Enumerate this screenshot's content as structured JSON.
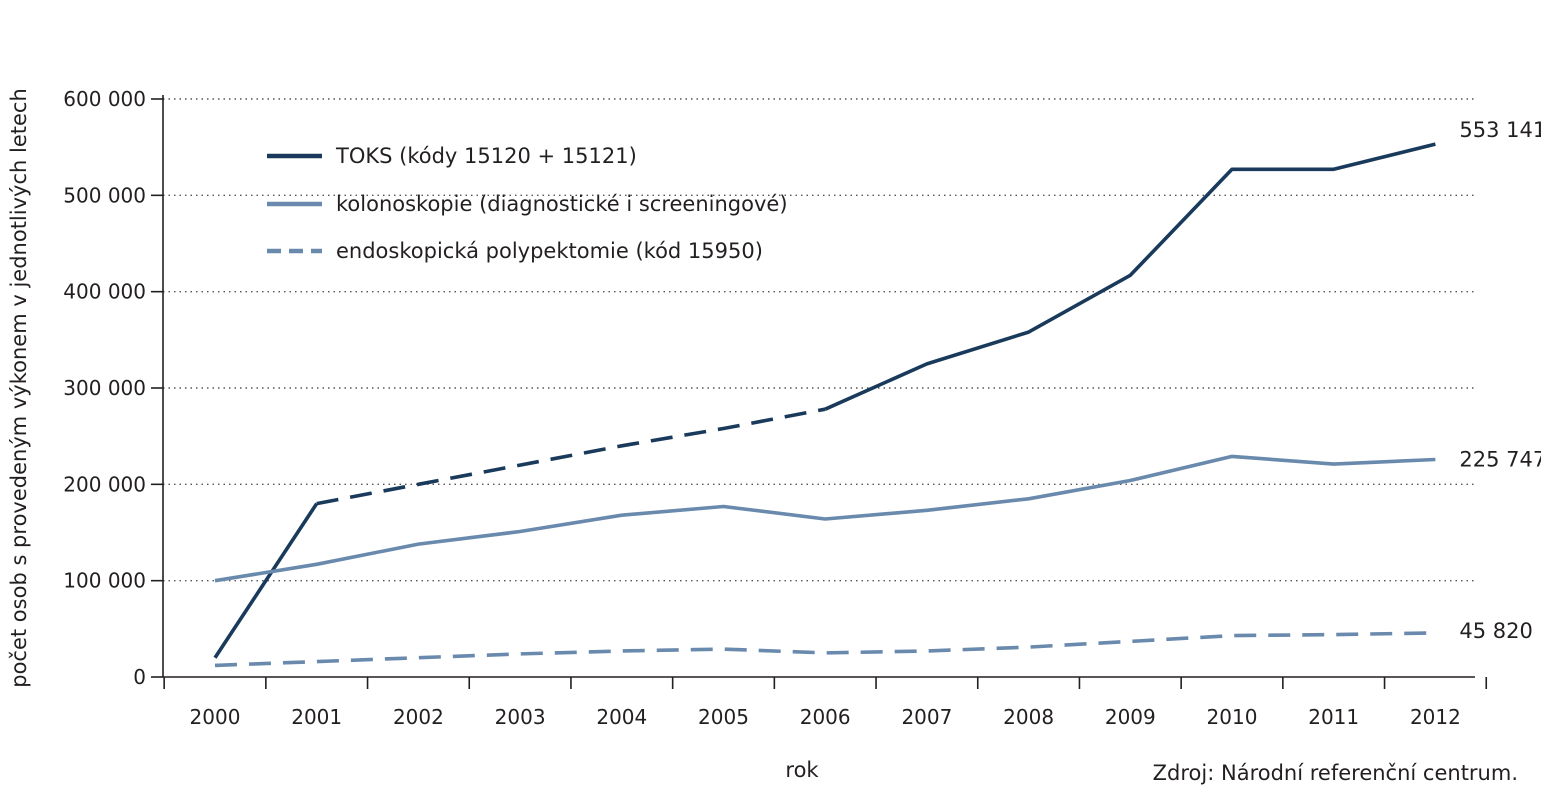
{
  "chart_data": {
    "type": "line",
    "title": "",
    "xlabel": "rok",
    "ylabel": "počet osob s provedeným výkonem v jednotlivých letech",
    "ylim": [
      0,
      600000
    ],
    "y_ticks": [
      0,
      100000,
      200000,
      300000,
      400000,
      500000,
      600000
    ],
    "y_tick_labels": [
      "0",
      "100 000",
      "200 000",
      "300 000",
      "400 000",
      "500 000",
      "600 000"
    ],
    "categories": [
      "2000",
      "2001",
      "2002",
      "2003",
      "2004",
      "2005",
      "2006",
      "2007",
      "2008",
      "2009",
      "2010",
      "2011",
      "2012"
    ],
    "grid": "horizontal dotted",
    "legend_position": "top-left",
    "colors": {
      "dark": "#1a3a5c",
      "light": "#6a8aad",
      "axis": "#231f20",
      "grid": "#555555"
    },
    "series": [
      {
        "name": "TOKS (kódy 15120 + 15121)",
        "style": "solid-dark",
        "values": [
          20000,
          180000,
          200000,
          220000,
          240000,
          258000,
          278000,
          325000,
          358000,
          417000,
          527000,
          527000,
          553141
        ],
        "dashed_between": [
          "2001",
          "2006"
        ],
        "end_label": "553 141"
      },
      {
        "name": "kolonoskopie (diagnostické i screeningové)",
        "style": "solid-light",
        "values": [
          100000,
          117000,
          138000,
          151000,
          168000,
          177000,
          164000,
          173000,
          185000,
          204000,
          229000,
          221000,
          225747
        ],
        "end_label": "225 747"
      },
      {
        "name": "endoskopická polypektomie (kód 15950)",
        "style": "dashed-light",
        "values": [
          12000,
          16000,
          20000,
          24000,
          27000,
          29000,
          25000,
          27000,
          31000,
          37000,
          43000,
          44000,
          45820
        ],
        "end_label": "45 820"
      }
    ],
    "source": "Zdroj: Národní referenční centrum."
  }
}
